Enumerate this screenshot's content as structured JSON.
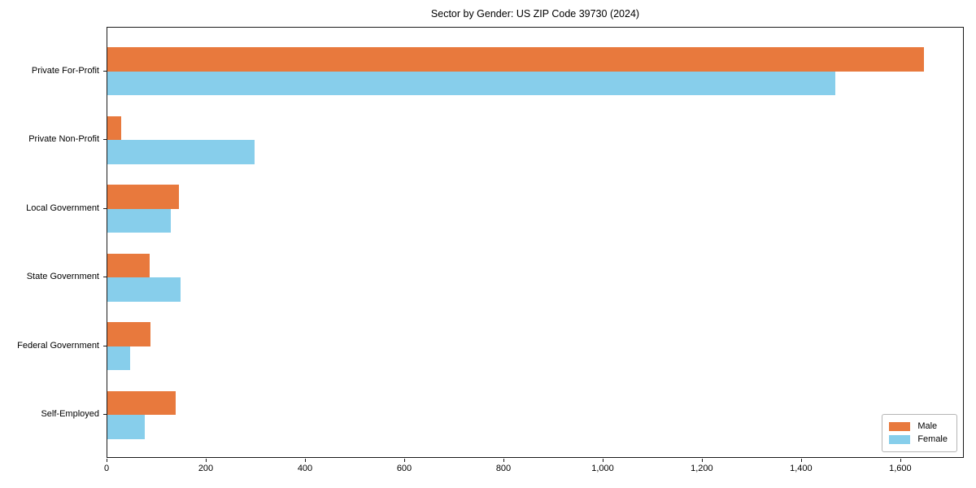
{
  "chart_data": {
    "type": "bar",
    "orientation": "horizontal",
    "title": "Sector by Gender: US ZIP Code 39730 (2024)",
    "categories": [
      "Private For-Profit",
      "Private Non-Profit",
      "Local Government",
      "State Government",
      "Federal Government",
      "Self-Employed"
    ],
    "series": [
      {
        "name": "Male",
        "color": "#E8793D",
        "values": [
          1646,
          27,
          144,
          85,
          87,
          137
        ]
      },
      {
        "name": "Female",
        "color": "#87CEEB",
        "values": [
          1467,
          296,
          127,
          148,
          46,
          76
        ]
      }
    ],
    "xlabel": "",
    "ylabel": "",
    "xlim": [
      0,
      1728
    ],
    "xticks": [
      0,
      200,
      400,
      600,
      800,
      1000,
      1200,
      1400,
      1600
    ],
    "xtick_labels": [
      "0",
      "200",
      "400",
      "600",
      "800",
      "1,000",
      "1,200",
      "1,400",
      "1,600"
    ],
    "grid": false,
    "legend": {
      "position": "lower-right",
      "entries": [
        "Male",
        "Female"
      ]
    }
  }
}
